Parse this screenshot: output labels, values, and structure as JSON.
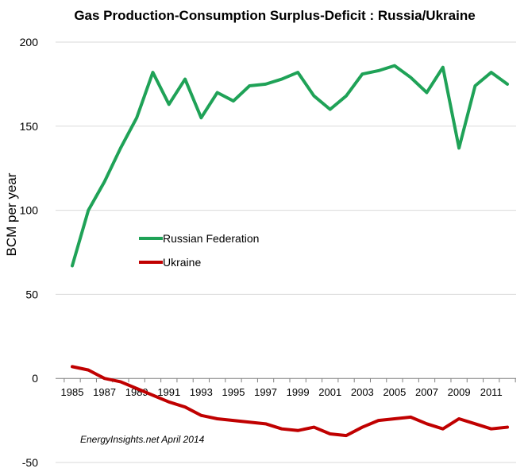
{
  "chart_data": {
    "type": "line",
    "title": "Gas Production-Consumption  Surplus-Deficit : Russia/Ukraine",
    "xlabel": "",
    "ylabel": "BCM per year",
    "ylim": [
      -50,
      200
    ],
    "yticks": [
      "-50",
      "0",
      "50",
      "100",
      "150",
      "200"
    ],
    "xlim": [
      1985,
      2012
    ],
    "xticks": [
      "1985",
      "1987",
      "1989",
      "1991",
      "1993",
      "1995",
      "1997",
      "1999",
      "2001",
      "2003",
      "2005",
      "2007",
      "2009",
      "2011"
    ],
    "grid": "horizontal",
    "legend_position": "center-left",
    "x": [
      1985,
      1986,
      1987,
      1988,
      1989,
      1990,
      1991,
      1992,
      1993,
      1994,
      1995,
      1996,
      1997,
      1998,
      1999,
      2000,
      2001,
      2002,
      2003,
      2004,
      2005,
      2006,
      2007,
      2008,
      2009,
      2010,
      2011,
      2012
    ],
    "series": [
      {
        "name": "Russian Federation",
        "color": "#1fa257",
        "values": [
          67,
          100,
          117,
          137,
          155,
          182,
          163,
          178,
          155,
          170,
          165,
          174,
          175,
          178,
          182,
          168,
          160,
          168,
          181,
          183,
          186,
          179,
          170,
          185,
          137,
          174,
          182,
          175
        ]
      },
      {
        "name": "Ukraine",
        "color": "#c00000",
        "values": [
          7,
          5,
          0,
          -2,
          -6,
          -10,
          -14,
          -17,
          -22,
          -24,
          -25,
          -26,
          -27,
          -30,
          -31,
          -29,
          -33,
          -34,
          -29,
          -25,
          -24,
          -23,
          -27,
          -30,
          -24,
          -27,
          -30,
          -29
        ]
      }
    ],
    "annotation": "EnergyInsights.net April 2014"
  }
}
